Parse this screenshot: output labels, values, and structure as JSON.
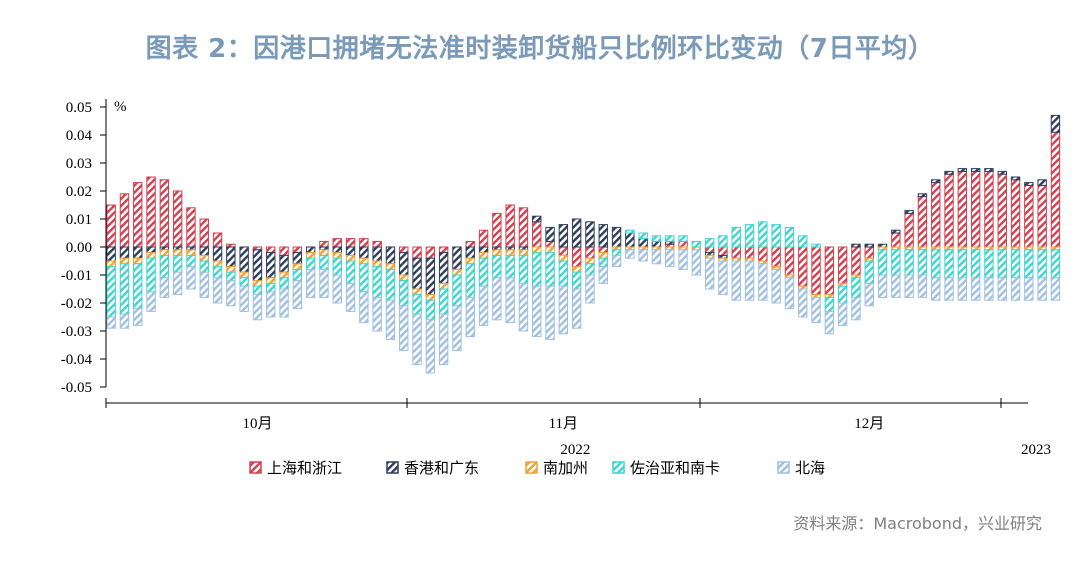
{
  "title": "图表 2：因港口拥堵无法准时装卸货船只比例环比变动（7日平均）",
  "source": "资料来源：Macrobond，兴业研究",
  "chart_data": {
    "type": "bar",
    "stacked": true,
    "unit": "%",
    "ylim": [
      -0.05,
      0.05
    ],
    "yticks": [
      "0.05",
      "0.04",
      "0.03",
      "0.02",
      "0.01",
      "0.00",
      "-0.01",
      "-0.02",
      "-0.03",
      "-0.04",
      "-0.05"
    ],
    "x_month_labels": [
      {
        "label": "10月",
        "index": 11
      },
      {
        "label": "11月",
        "index": 34
      },
      {
        "label": "12月",
        "index": 57
      }
    ],
    "x_year_labels": [
      {
        "label": "2022",
        "index": 34
      },
      {
        "label": "2023",
        "index": 71
      }
    ],
    "categories_count": 72,
    "series": [
      {
        "name": "上海和浙江",
        "color": "#d2404f",
        "values": [
          0.015,
          0.019,
          0.023,
          0.025,
          0.024,
          0.02,
          0.014,
          0.01,
          0.005,
          0.001,
          0,
          -0.001,
          -0.002,
          -0.003,
          -0.002,
          0,
          0.002,
          0.003,
          0.003,
          0.003,
          0.002,
          0,
          -0.002,
          -0.004,
          -0.004,
          -0.002,
          0,
          0.002,
          0.006,
          0.012,
          0.015,
          0.014,
          0.009,
          0.002,
          -0.003,
          -0.007,
          -0.004,
          -0.002,
          0,
          0,
          0,
          0,
          0.001,
          0.002,
          0,
          -0.002,
          -0.003,
          -0.004,
          -0.004,
          -0.005,
          -0.007,
          -0.01,
          -0.014,
          -0.017,
          -0.017,
          -0.013,
          -0.01,
          -0.004,
          0,
          0.005,
          0.012,
          0.018,
          0.023,
          0.026,
          0.027,
          0.027,
          0.027,
          0.026,
          0.024,
          0.022,
          0.022,
          0.041
        ]
      },
      {
        "name": "香港和广东",
        "color": "#2e3e5c",
        "values": [
          -0.005,
          -0.004,
          -0.004,
          -0.002,
          -0.001,
          -0.001,
          -0.001,
          -0.003,
          -0.005,
          -0.007,
          -0.009,
          -0.011,
          -0.009,
          -0.006,
          -0.004,
          -0.002,
          -0.001,
          -0.002,
          -0.003,
          -0.004,
          -0.005,
          -0.006,
          -0.008,
          -0.011,
          -0.013,
          -0.011,
          -0.008,
          -0.004,
          -0.002,
          -0.001,
          -0.001,
          -0.001,
          0.002,
          0.005,
          0.008,
          0.01,
          0.009,
          0.008,
          0.007,
          0.005,
          0.003,
          0.002,
          0.001,
          0,
          0,
          -0.001,
          -0.001,
          0,
          0,
          0,
          0,
          0,
          0,
          0,
          0,
          0,
          0.001,
          0.001,
          0.001,
          0.001,
          0.001,
          0.001,
          0.001,
          0.001,
          0.001,
          0.001,
          0.001,
          0.001,
          0.001,
          0.001,
          0.002,
          0.006
        ]
      },
      {
        "name": "南加州",
        "color": "#f0a23a",
        "values": [
          -0.002,
          -0.002,
          -0.002,
          -0.002,
          -0.002,
          -0.002,
          -0.002,
          -0.002,
          -0.002,
          -0.002,
          -0.002,
          -0.002,
          -0.002,
          -0.002,
          -0.002,
          -0.002,
          -0.002,
          -0.002,
          -0.002,
          -0.002,
          -0.002,
          -0.002,
          -0.002,
          -0.002,
          -0.002,
          -0.002,
          -0.002,
          -0.002,
          -0.002,
          -0.002,
          -0.002,
          -0.002,
          -0.002,
          -0.002,
          -0.002,
          -0.002,
          -0.002,
          -0.002,
          -0.001,
          -0.001,
          -0.001,
          -0.001,
          -0.001,
          -0.001,
          -0.001,
          -0.001,
          -0.001,
          -0.001,
          -0.001,
          -0.001,
          -0.001,
          -0.001,
          -0.001,
          -0.001,
          -0.001,
          -0.001,
          -0.001,
          -0.001,
          -0.001,
          -0.001,
          -0.001,
          -0.001,
          -0.001,
          -0.001,
          -0.001,
          -0.001,
          -0.001,
          -0.001,
          -0.001,
          -0.001,
          -0.001,
          -0.001
        ]
      },
      {
        "name": "佐治亚和南卡",
        "color": "#3fd4cf",
        "values": [
          -0.018,
          -0.018,
          -0.016,
          -0.012,
          -0.008,
          -0.006,
          -0.004,
          -0.004,
          -0.004,
          -0.003,
          -0.003,
          -0.003,
          -0.003,
          -0.004,
          -0.004,
          -0.004,
          -0.005,
          -0.006,
          -0.008,
          -0.01,
          -0.011,
          -0.011,
          -0.009,
          -0.007,
          -0.007,
          -0.009,
          -0.011,
          -0.012,
          -0.01,
          -0.008,
          -0.008,
          -0.01,
          -0.012,
          -0.012,
          -0.009,
          -0.006,
          -0.004,
          -0.003,
          -0.002,
          0.001,
          0.002,
          0.002,
          0.002,
          0.002,
          0.002,
          0.003,
          0.004,
          0.007,
          0.008,
          0.009,
          0.008,
          0.007,
          0.004,
          0.001,
          -0.005,
          -0.006,
          -0.007,
          -0.008,
          -0.009,
          -0.009,
          -0.009,
          -0.009,
          -0.01,
          -0.01,
          -0.01,
          -0.01,
          -0.01,
          -0.01,
          -0.01,
          -0.01,
          -0.01,
          -0.01
        ]
      },
      {
        "name": "北海",
        "color": "#9fc0e2",
        "values": [
          -0.004,
          -0.005,
          -0.006,
          -0.007,
          -0.007,
          -0.008,
          -0.008,
          -0.009,
          -0.009,
          -0.009,
          -0.009,
          -0.009,
          -0.009,
          -0.01,
          -0.01,
          -0.01,
          -0.01,
          -0.01,
          -0.01,
          -0.011,
          -0.012,
          -0.014,
          -0.016,
          -0.018,
          -0.019,
          -0.018,
          -0.016,
          -0.014,
          -0.014,
          -0.015,
          -0.016,
          -0.017,
          -0.018,
          -0.019,
          -0.017,
          -0.014,
          -0.01,
          -0.006,
          -0.004,
          -0.003,
          -0.004,
          -0.005,
          -0.006,
          -0.007,
          -0.009,
          -0.011,
          -0.012,
          -0.014,
          -0.014,
          -0.013,
          -0.012,
          -0.011,
          -0.01,
          -0.009,
          -0.008,
          -0.008,
          -0.008,
          -0.008,
          -0.008,
          -0.008,
          -0.008,
          -0.008,
          -0.008,
          -0.008,
          -0.008,
          -0.008,
          -0.008,
          -0.008,
          -0.008,
          -0.008,
          -0.008,
          -0.008
        ]
      }
    ]
  }
}
